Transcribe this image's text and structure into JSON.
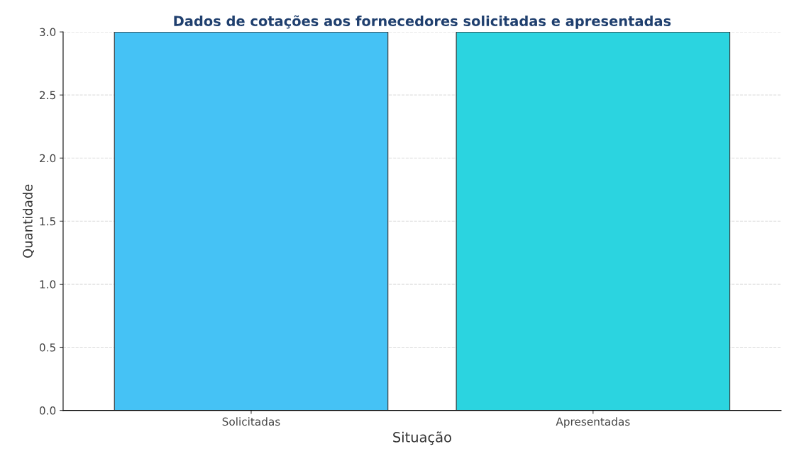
{
  "chart_data": {
    "type": "bar",
    "title": "Dados de cotações aos fornecedores solicitadas e apresentadas",
    "xlabel": "Situação",
    "ylabel": "Quantidade",
    "categories": [
      "Solicitadas",
      "Apresentadas"
    ],
    "series": [
      {
        "values": [
          3,
          3
        ],
        "colors": [
          "#45c2f5",
          "#2bd4e0"
        ]
      }
    ],
    "ylim": [
      0,
      3.0
    ],
    "yticks": [
      {
        "value": 0,
        "label": "0.0"
      },
      {
        "value": 0.5,
        "label": "0.5"
      },
      {
        "value": 1,
        "label": "1.0"
      },
      {
        "value": 1.5,
        "label": "1.5"
      },
      {
        "value": 2,
        "label": "2.0"
      },
      {
        "value": 2.5,
        "label": "2.5"
      },
      {
        "value": 3,
        "label": "3.0"
      }
    ],
    "grid": "y"
  }
}
